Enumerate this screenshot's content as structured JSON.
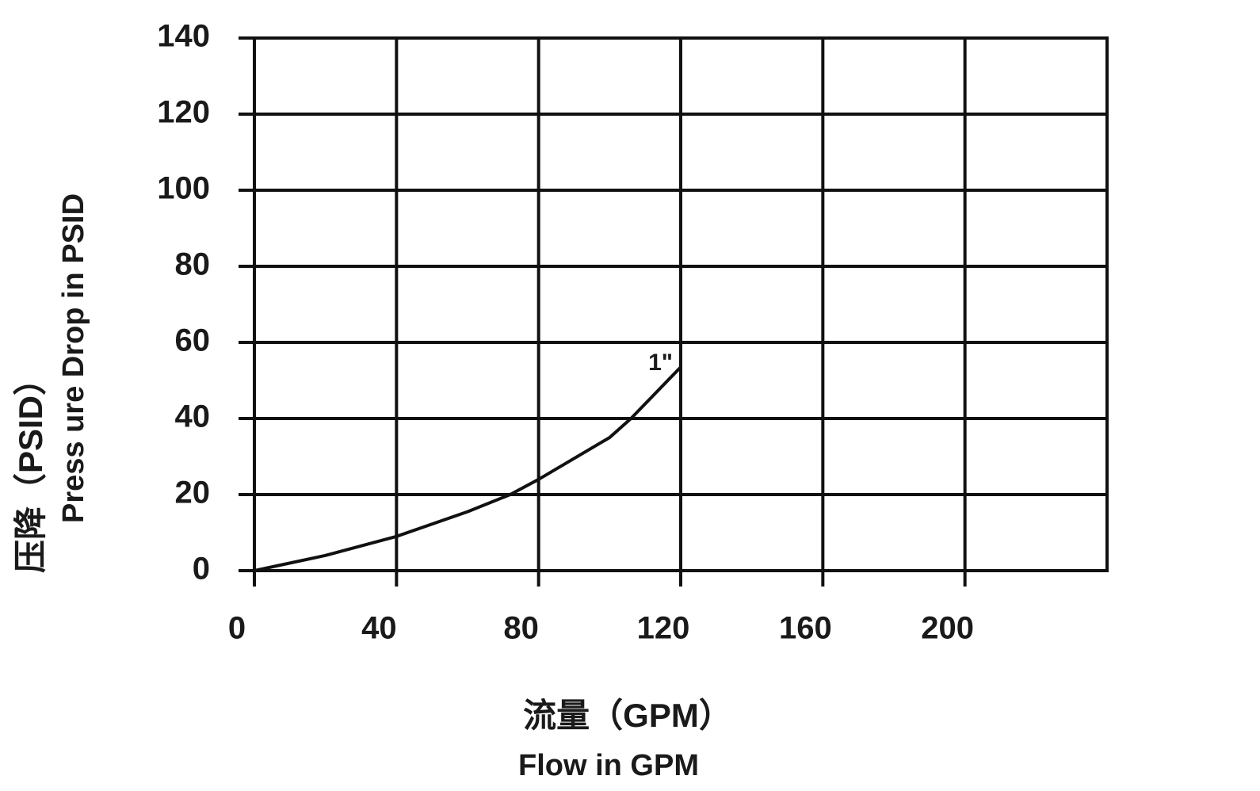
{
  "chart_data": {
    "type": "line",
    "x_label": "流量（GPM）",
    "x_label_en": "Flow in GPM",
    "y_label": "压降（PSID）",
    "y_label_en": "Press ure Drop in PSID",
    "x": [
      0,
      20,
      40,
      60,
      72,
      80,
      100,
      106,
      120
    ],
    "series": [
      {
        "name": "1\"",
        "color": "#111111",
        "values": [
          0,
          4,
          9,
          15.5,
          20,
          24,
          35,
          40,
          53.5
        ]
      }
    ],
    "xlim": [
      0,
      240
    ],
    "ylim": [
      0,
      140
    ],
    "xticks": [
      0,
      40,
      80,
      120,
      160,
      200
    ],
    "yticks": [
      0,
      20,
      40,
      60,
      80,
      100,
      120,
      140
    ],
    "grid": true
  }
}
